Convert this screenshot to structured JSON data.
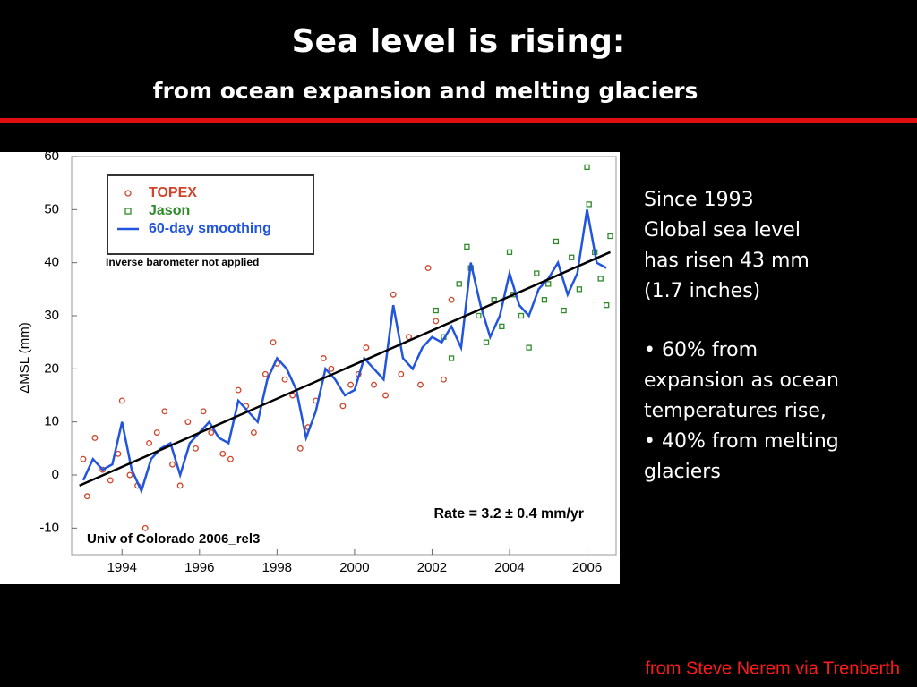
{
  "title": "Sea level is rising:",
  "subtitle": "from ocean expansion and melting glaciers",
  "notes": [
    [
      "Since 1993",
      "Global sea level",
      "has risen 43 mm",
      "(1.7 inches)"
    ],
    [
      "• 60% from",
      "expansion as  ocean",
      "temperatures rise,",
      "• 40% from melting",
      "glaciers"
    ]
  ],
  "credit": "from Steve Nerem via Trenberth",
  "chart_data": {
    "type": "scatter",
    "ylabel": "ΔMSL  (mm)",
    "annotations": [
      "Inverse barometer not applied",
      "Rate = 3.2 ± 0.4 mm/yr",
      "Univ of Colorado 2006_rel3"
    ],
    "xlim": [
      1992.7,
      2006.75
    ],
    "ylim": [
      -15,
      60
    ],
    "xticks": [
      1994,
      1996,
      1998,
      2000,
      2002,
      2004,
      2006
    ],
    "yticks": [
      -10,
      0,
      10,
      20,
      30,
      40,
      50,
      60
    ],
    "series": [
      {
        "name": "TOPEX",
        "kind": "points",
        "marker": "circle",
        "color": "#d0452a",
        "x": [
          1993.0,
          1993.1,
          1993.3,
          1993.5,
          1993.7,
          1993.9,
          1994.0,
          1994.2,
          1994.4,
          1994.6,
          1994.7,
          1994.9,
          1995.1,
          1995.3,
          1995.5,
          1995.7,
          1995.9,
          1996.1,
          1996.3,
          1996.6,
          1996.8,
          1997.0,
          1997.2,
          1997.4,
          1997.7,
          1997.9,
          1998.0,
          1998.2,
          1998.4,
          1998.6,
          1998.8,
          1999.0,
          1999.2,
          1999.4,
          1999.7,
          1999.9,
          2000.1,
          2000.3,
          2000.5,
          2000.8,
          2001.0,
          2001.2,
          2001.4,
          2001.7,
          2001.9,
          2002.1,
          2002.3,
          2002.5
        ],
        "values": [
          3,
          -4,
          7,
          1,
          -1,
          4,
          14,
          0,
          -2,
          -10,
          6,
          8,
          12,
          2,
          -2,
          10,
          5,
          12,
          8,
          4,
          3,
          16,
          13,
          8,
          19,
          25,
          21,
          18,
          15,
          5,
          9,
          14,
          22,
          20,
          13,
          17,
          19,
          24,
          17,
          15,
          34,
          19,
          26,
          17,
          39,
          29,
          18,
          33
        ]
      },
      {
        "name": "Jason",
        "kind": "points",
        "marker": "square",
        "color": "#2f8a2a",
        "x": [
          2002.1,
          2002.3,
          2002.5,
          2002.7,
          2002.9,
          2003.0,
          2003.2,
          2003.4,
          2003.6,
          2003.8,
          2004.0,
          2004.1,
          2004.3,
          2004.5,
          2004.7,
          2004.9,
          2005.0,
          2005.2,
          2005.4,
          2005.6,
          2005.8,
          2006.0,
          2006.05,
          2006.2,
          2006.35,
          2006.5,
          2006.6
        ],
        "values": [
          31,
          26,
          22,
          36,
          43,
          39,
          30,
          25,
          33,
          28,
          42,
          34,
          30,
          24,
          38,
          33,
          36,
          44,
          31,
          41,
          35,
          58,
          51,
          42,
          37,
          32,
          45
        ]
      },
      {
        "name": "60-day smoothing",
        "kind": "line",
        "color": "#2255dd",
        "x": [
          1993.0,
          1993.25,
          1993.5,
          1993.75,
          1994.0,
          1994.25,
          1994.5,
          1994.75,
          1995.0,
          1995.25,
          1995.5,
          1995.75,
          1996.0,
          1996.25,
          1996.5,
          1996.75,
          1997.0,
          1997.25,
          1997.5,
          1997.75,
          1998.0,
          1998.25,
          1998.5,
          1998.75,
          1999.0,
          1999.25,
          1999.5,
          1999.75,
          2000.0,
          2000.25,
          2000.5,
          2000.75,
          2001.0,
          2001.25,
          2001.5,
          2001.75,
          2002.0,
          2002.25,
          2002.5,
          2002.75,
          2003.0,
          2003.25,
          2003.5,
          2003.75,
          2004.0,
          2004.25,
          2004.5,
          2004.75,
          2005.0,
          2005.25,
          2005.5,
          2005.75,
          2006.0,
          2006.25,
          2006.5
        ],
        "values": [
          -1,
          3,
          1,
          2,
          10,
          1,
          -3,
          3,
          5,
          6,
          0,
          6,
          8,
          10,
          7,
          6,
          14,
          12,
          10,
          18,
          22,
          20,
          16,
          7,
          12,
          20,
          18,
          15,
          16,
          22,
          20,
          18,
          32,
          22,
          20,
          24,
          26,
          25,
          28,
          24,
          40,
          32,
          26,
          30,
          38,
          32,
          30,
          35,
          37,
          40,
          34,
          38,
          50,
          40,
          39
        ]
      },
      {
        "kind": "line",
        "color": "#000000",
        "x": [
          1992.9,
          2006.6
        ],
        "values": [
          -2,
          42
        ]
      }
    ]
  }
}
